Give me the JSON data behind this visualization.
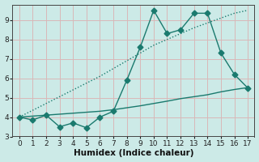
{
  "x": [
    0,
    1,
    2,
    3,
    4,
    5,
    6,
    7,
    8,
    9,
    10,
    11,
    12,
    13,
    14,
    15,
    16,
    17
  ],
  "y_line1_dotted": [
    4.0,
    4.35,
    4.7,
    5.05,
    5.4,
    5.75,
    6.1,
    6.5,
    6.9,
    7.3,
    7.7,
    8.0,
    8.3,
    8.6,
    8.85,
    9.1,
    9.35,
    9.5
  ],
  "y_line2_markers": [
    4.0,
    3.85,
    4.1,
    3.5,
    3.7,
    3.45,
    4.0,
    4.3,
    5.9,
    7.6,
    9.5,
    8.3,
    8.5,
    9.35,
    9.35,
    7.3,
    6.2,
    5.5
  ],
  "y_lower_solid": [
    4.0,
    4.05,
    4.1,
    4.15,
    4.2,
    4.25,
    4.3,
    4.38,
    4.48,
    4.58,
    4.7,
    4.82,
    4.95,
    5.05,
    5.15,
    5.3,
    5.42,
    5.52
  ],
  "line_color": "#1a7a6e",
  "bg_color": "#cceae7",
  "grid_color": "#d9b8b8",
  "xlabel": "Humidex (Indice chaleur)",
  "ylim": [
    3.0,
    9.8
  ],
  "xlim": [
    -0.5,
    17.5
  ],
  "yticks": [
    3,
    4,
    5,
    6,
    7,
    8,
    9
  ],
  "xticks": [
    0,
    1,
    2,
    3,
    4,
    5,
    6,
    7,
    8,
    9,
    10,
    11,
    12,
    13,
    14,
    15,
    16,
    17
  ],
  "markersize": 3.5,
  "linewidth": 1.0
}
